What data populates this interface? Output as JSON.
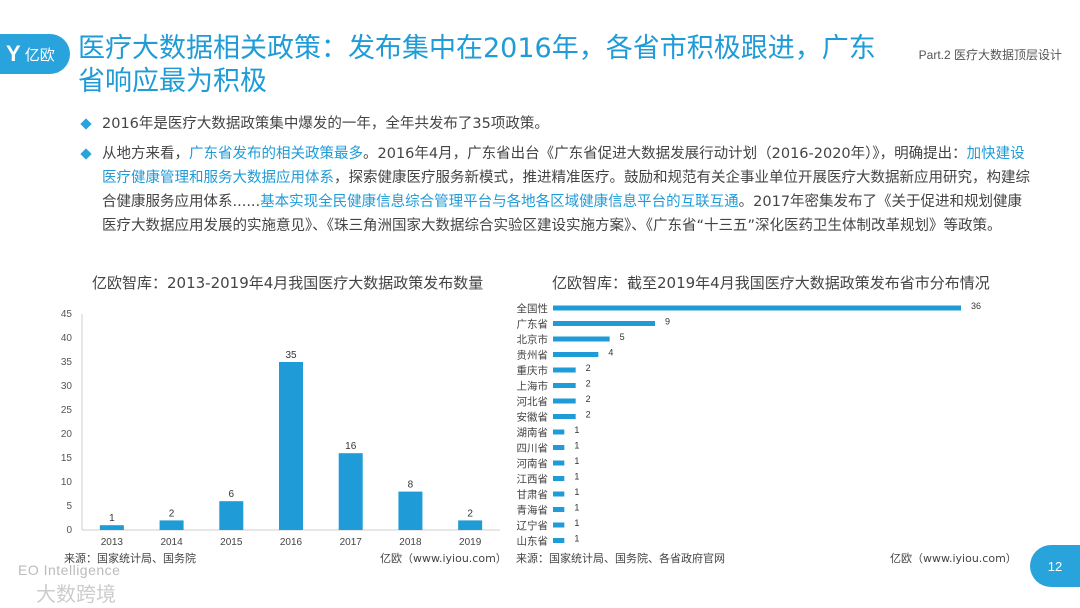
{
  "logo": {
    "mark": "Y",
    "text": "亿欧"
  },
  "title": "医疗大数据相关政策：发布集中在2016年，各省市积极跟进，广东省响应最为积极",
  "part_label": "Part.2 医疗大数据顶层设计",
  "bullets": [
    {
      "segments": [
        {
          "text": "2016年是医疗大数据政策集中爆发的一年，全年共发布了35项政策。",
          "hl": false
        }
      ]
    },
    {
      "segments": [
        {
          "text": "从地方来看，",
          "hl": false
        },
        {
          "text": "广东省发布的相关政策最多",
          "hl": true
        },
        {
          "text": "。2016年4月，广东省出台《广东省促进大数据发展行动计划（2016-2020年）》，明确提出：",
          "hl": false
        },
        {
          "text": "加快建设医疗健康管理和服务大数据应用体系",
          "hl": true
        },
        {
          "text": "，探索健康医疗服务新模式，推进精准医疗。鼓励和规范有关企事业单位开展医疗大数据新应用研究，构建综合健康服务应用体系......",
          "hl": false
        },
        {
          "text": "基本实现全民健康信息综合管理平台与各地各区域健康信息平台的互联互通",
          "hl": true
        },
        {
          "text": "。2017年密集发布了《关于促进和规划健康医疗大数据应用发展的实施意见》、《珠三角洲国家大数据综合实验区建设实施方案》、《广东省“十三五”深化医药卫生体制改革规划》等政策。",
          "hl": false
        }
      ]
    }
  ],
  "colors": {
    "accent": "#1f9bd7",
    "bar": "#1f9bd7"
  },
  "chart_data": [
    {
      "type": "bar",
      "title": "亿欧智库：2013-2019年4月我国医疗大数据政策发布数量",
      "categories": [
        "2013",
        "2014",
        "2015",
        "2016",
        "2017",
        "2018",
        "2019"
      ],
      "values": [
        1,
        2,
        6,
        35,
        16,
        8,
        2
      ],
      "ylim": [
        0,
        45
      ],
      "yticks": [
        0,
        5,
        10,
        15,
        20,
        25,
        30,
        35,
        40,
        45
      ],
      "grid": false,
      "source": "来源：国家统计局、国务院",
      "credit": "亿欧（www.iyiou.com）"
    },
    {
      "type": "bar",
      "orientation": "horizontal",
      "title": "亿欧智库：截至2019年4月我国医疗大数据政策发布省市分布情况",
      "categories": [
        "全国性",
        "广东省",
        "北京市",
        "贵州省",
        "重庆市",
        "上海市",
        "河北省",
        "安徽省",
        "湖南省",
        "四川省",
        "河南省",
        "江西省",
        "甘肃省",
        "青海省",
        "辽宁省",
        "山东省"
      ],
      "values": [
        36,
        9,
        5,
        4,
        2,
        2,
        2,
        2,
        1,
        1,
        1,
        1,
        1,
        1,
        1,
        1
      ],
      "source": "来源：国家统计局、国务院、各省政府官网",
      "credit": "亿欧（www.iyiou.com）"
    }
  ],
  "page_number": "12",
  "watermark": {
    "en": "EO Intelligence",
    "cn": "大数跨境"
  }
}
